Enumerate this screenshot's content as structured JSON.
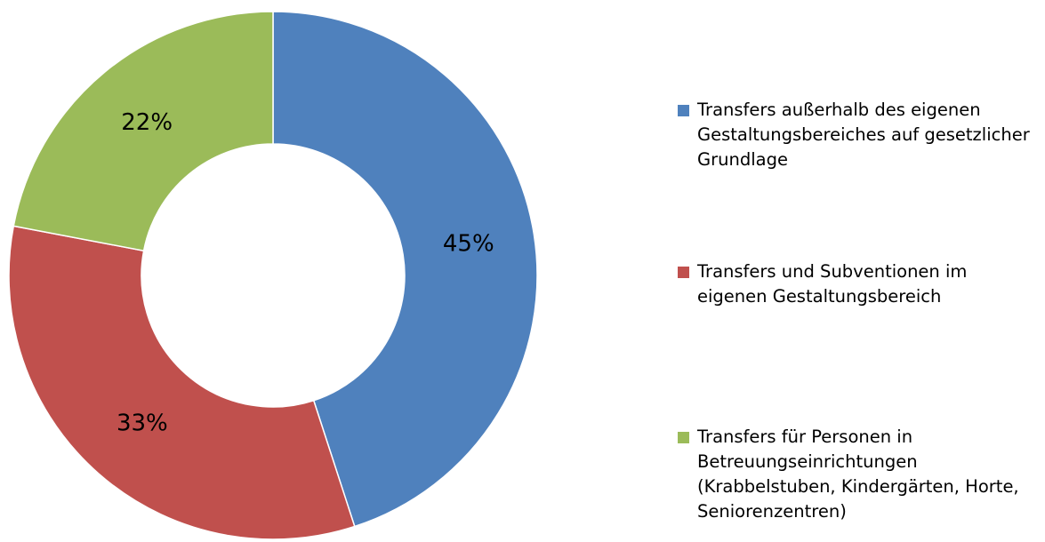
{
  "chart_data": {
    "type": "donut",
    "series": [
      {
        "name": "Transfers außerhalb des eigenen Gestaltungsbereiches auf gesetzlicher Grundlage",
        "color": "#4f81bd"
      },
      {
        "name": "Transfers und Subventionen im eigenen Gestaltungsbereich",
        "color": "#c0504d"
      },
      {
        "name": "Transfers für Personen in Betreuungseinrichtungen (Krabbelstuben, Kindergärten, Horte, Seniorenzentren)",
        "color": "#9bbb59"
      }
    ],
    "values": [
      45,
      33,
      22
    ],
    "value_labels": [
      "45%",
      "33%",
      "22%"
    ],
    "legend": "right"
  }
}
